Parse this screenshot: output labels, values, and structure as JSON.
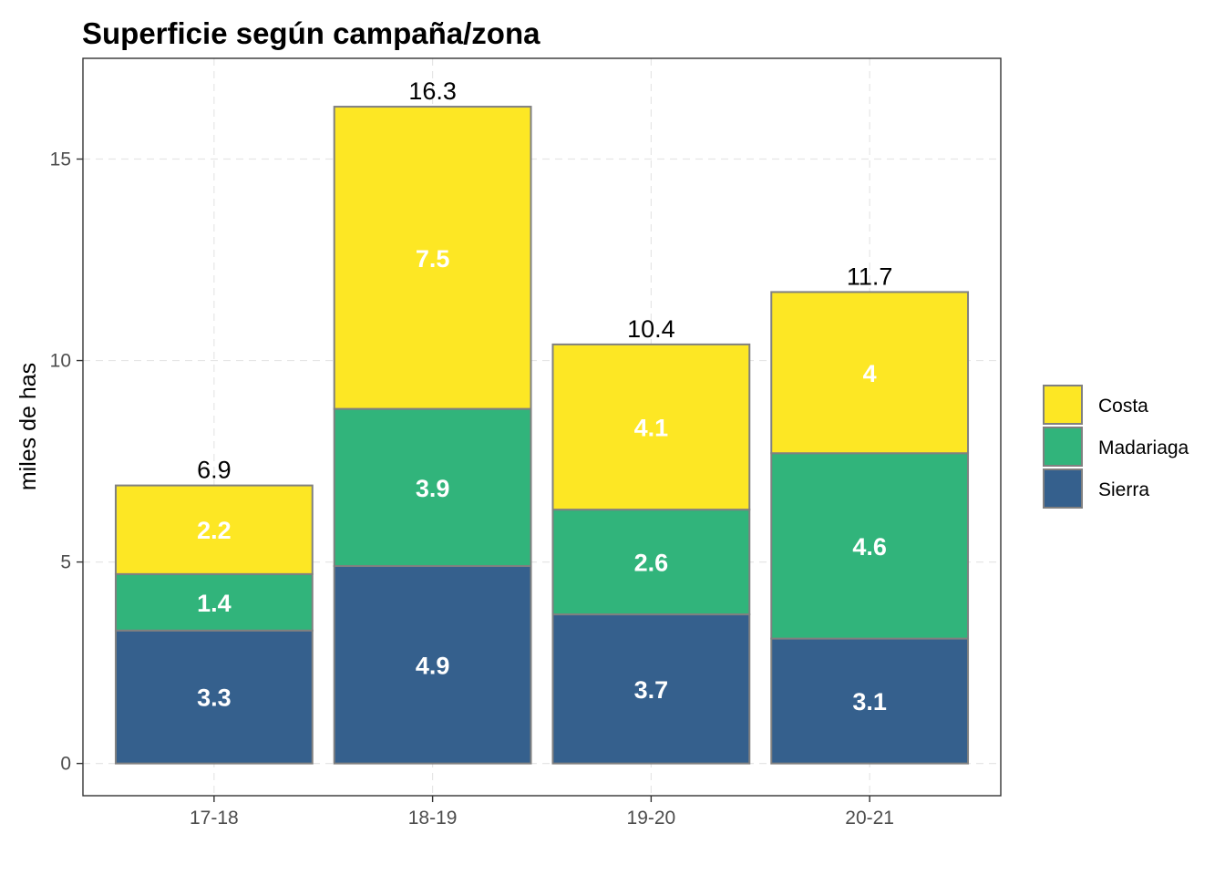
{
  "chart_data": {
    "type": "bar",
    "stacked": true,
    "title": "Superficie según campaña/zona",
    "xlabel": "",
    "ylabel": "miles de has",
    "ylim": [
      -0.8,
      17.5
    ],
    "yticks": [
      0,
      5,
      10,
      15
    ],
    "grid": true,
    "legend_position": "right",
    "categories": [
      "17-18",
      "18-19",
      "19-20",
      "20-21"
    ],
    "series": [
      {
        "name": "Sierra",
        "color": "#35608d",
        "values": [
          3.3,
          4.9,
          3.7,
          3.1
        ],
        "labels": [
          "3.3",
          "4.9",
          "3.7",
          "3.1"
        ]
      },
      {
        "name": "Madariaga",
        "color": "#31b47b",
        "values": [
          1.4,
          3.9,
          2.6,
          4.6
        ],
        "labels": [
          "1.4",
          "3.9",
          "2.6",
          "4.6"
        ]
      },
      {
        "name": "Costa",
        "color": "#fde724",
        "values": [
          2.2,
          7.5,
          4.1,
          4.0
        ],
        "labels": [
          "2.2",
          "7.5",
          "4.1",
          "4"
        ]
      }
    ],
    "totals": [
      6.9,
      16.3,
      10.4,
      11.7
    ],
    "total_labels": [
      "6.9",
      "16.3",
      "10.4",
      "11.7"
    ],
    "legend_order": [
      "Costa",
      "Madariaga",
      "Sierra"
    ]
  }
}
